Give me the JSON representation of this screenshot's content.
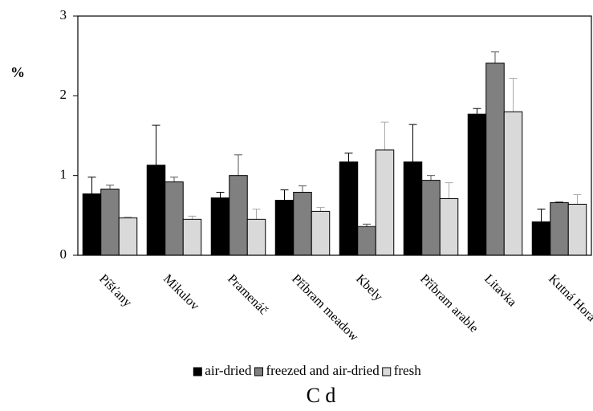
{
  "chart_data": {
    "type": "bar",
    "title": "C d",
    "y_label": "%",
    "categories": [
      "Píšťany",
      "Mikulov",
      "Pramenáč",
      "Příbram meadow",
      "Kbely",
      "Příbram arable",
      "Litavka",
      "Kutná Hora"
    ],
    "series": [
      {
        "name": "air-dried",
        "color": "#000000",
        "values": [
          0.77,
          1.13,
          0.72,
          0.69,
          1.17,
          1.17,
          1.77,
          0.42
        ],
        "errors": [
          0.21,
          0.5,
          0.07,
          0.13,
          0.11,
          0.47,
          0.07,
          0.16
        ]
      },
      {
        "name": "freezed and air-dried",
        "color": "#808080",
        "values": [
          0.83,
          0.92,
          1.0,
          0.79,
          0.36,
          0.94,
          2.41,
          0.66
        ],
        "errors": [
          0.05,
          0.06,
          0.26,
          0.08,
          0.03,
          0.06,
          0.14,
          0.01
        ]
      },
      {
        "name": "fresh",
        "color": "#d9d9d9",
        "values": [
          0.47,
          0.45,
          0.45,
          0.55,
          1.32,
          0.71,
          1.8,
          0.64
        ],
        "errors": [
          0.01,
          0.04,
          0.13,
          0.05,
          0.35,
          0.2,
          0.42,
          0.12
        ]
      }
    ],
    "ylim": [
      0,
      3
    ],
    "yticks": [
      0,
      1,
      2,
      3
    ],
    "legend": "bottom"
  }
}
